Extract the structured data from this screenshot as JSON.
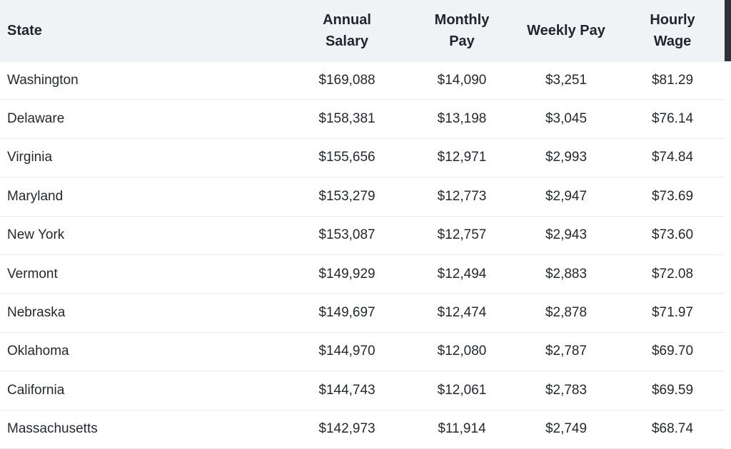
{
  "table": {
    "columns": [
      {
        "id": "state",
        "label": "State"
      },
      {
        "id": "annual_salary",
        "label": "Annual Salary"
      },
      {
        "id": "monthly_pay",
        "label": "Monthly Pay"
      },
      {
        "id": "weekly_pay",
        "label": "Weekly Pay"
      },
      {
        "id": "hourly_wage",
        "label": "Hourly Wage"
      }
    ],
    "rows": [
      {
        "state": "Washington",
        "annual_salary": "$169,088",
        "monthly_pay": "$14,090",
        "weekly_pay": "$3,251",
        "hourly_wage": "$81.29"
      },
      {
        "state": "Delaware",
        "annual_salary": "$158,381",
        "monthly_pay": "$13,198",
        "weekly_pay": "$3,045",
        "hourly_wage": "$76.14"
      },
      {
        "state": "Virginia",
        "annual_salary": "$155,656",
        "monthly_pay": "$12,971",
        "weekly_pay": "$2,993",
        "hourly_wage": "$74.84"
      },
      {
        "state": "Maryland",
        "annual_salary": "$153,279",
        "monthly_pay": "$12,773",
        "weekly_pay": "$2,947",
        "hourly_wage": "$73.69"
      },
      {
        "state": "New York",
        "annual_salary": "$153,087",
        "monthly_pay": "$12,757",
        "weekly_pay": "$2,943",
        "hourly_wage": "$73.60"
      },
      {
        "state": "Vermont",
        "annual_salary": "$149,929",
        "monthly_pay": "$12,494",
        "weekly_pay": "$2,883",
        "hourly_wage": "$72.08"
      },
      {
        "state": "Nebraska",
        "annual_salary": "$149,697",
        "monthly_pay": "$12,474",
        "weekly_pay": "$2,878",
        "hourly_wage": "$71.97"
      },
      {
        "state": "Oklahoma",
        "annual_salary": "$144,970",
        "monthly_pay": "$12,080",
        "weekly_pay": "$2,787",
        "hourly_wage": "$69.70"
      },
      {
        "state": "California",
        "annual_salary": "$144,743",
        "monthly_pay": "$12,061",
        "weekly_pay": "$2,783",
        "hourly_wage": "$69.59"
      },
      {
        "state": "Massachusetts",
        "annual_salary": "$142,973",
        "monthly_pay": "$11,914",
        "weekly_pay": "$2,749",
        "hourly_wage": "$68.74"
      }
    ]
  },
  "colors": {
    "header_bg": "#eff3f6",
    "header_text": "#21262b",
    "body_text": "#24292e",
    "row_border": "#e9ebee",
    "scrollbar_thumb": "#2f3337",
    "background": "#ffffff"
  }
}
